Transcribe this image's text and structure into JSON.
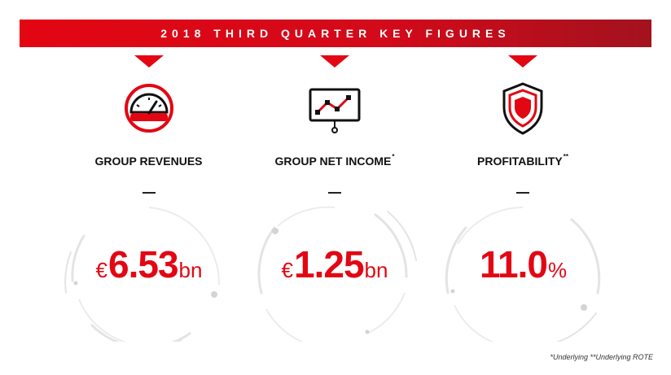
{
  "banner": {
    "title": "2018 THIRD QUARTER KEY FIGURES"
  },
  "figures": [
    {
      "label": "GROUP REVENUES",
      "label_mark": "",
      "currency": "€",
      "value": "6.53",
      "unit": "bn",
      "icon": "speedometer-icon"
    },
    {
      "label": "GROUP NET INCOME",
      "label_mark": "*",
      "currency": "€",
      "value": "1.25",
      "unit": "bn",
      "icon": "line-chart-board-icon"
    },
    {
      "label": "PROFITABILITY",
      "label_mark": "**",
      "currency": "",
      "value": "11.0",
      "unit": "%",
      "icon": "shield-icon"
    }
  ],
  "footnote": "*Underlying  **Underlying ROTE",
  "colors": {
    "accent": "#e30613",
    "text": "#111111",
    "ring": "#e4e4e4"
  }
}
